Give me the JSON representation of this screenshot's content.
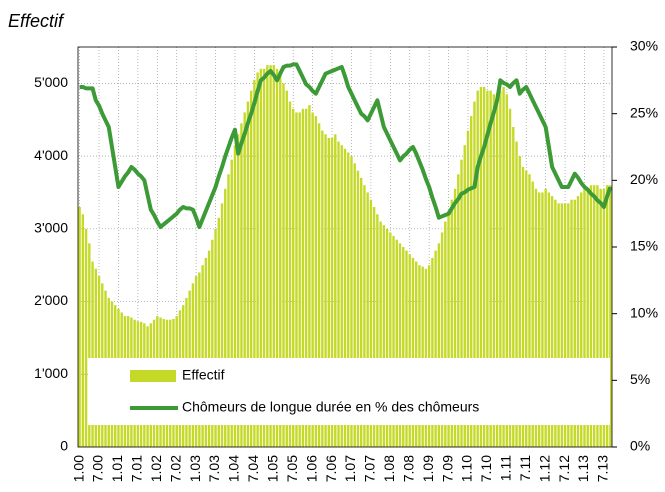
{
  "chart_data": {
    "type": "bar_line",
    "title": "Effectif",
    "categories": [
      "1.00",
      null,
      null,
      null,
      null,
      null,
      "7.00",
      null,
      null,
      null,
      null,
      null,
      "1.01",
      null,
      null,
      null,
      null,
      null,
      "7.01",
      null,
      null,
      null,
      null,
      null,
      "1.02",
      null,
      null,
      null,
      null,
      null,
      "7.02",
      null,
      null,
      null,
      null,
      null,
      "1.03",
      null,
      null,
      null,
      null,
      null,
      "7.03",
      null,
      null,
      null,
      null,
      null,
      "1.04",
      null,
      null,
      null,
      null,
      null,
      "7.04",
      null,
      null,
      null,
      null,
      null,
      "1.05",
      null,
      null,
      null,
      null,
      null,
      "7.05",
      null,
      null,
      null,
      null,
      null,
      "1.06",
      null,
      null,
      null,
      null,
      null,
      "7.06",
      null,
      null,
      null,
      null,
      null,
      "1.07",
      null,
      null,
      null,
      null,
      null,
      "7.07",
      null,
      null,
      null,
      null,
      null,
      "1.08",
      null,
      null,
      null,
      null,
      null,
      "7.08",
      null,
      null,
      null,
      null,
      null,
      "1.09",
      null,
      null,
      null,
      null,
      null,
      "7.09",
      null,
      null,
      null,
      null,
      null,
      "1.10",
      null,
      null,
      null,
      null,
      null,
      "7.10",
      null,
      null,
      null,
      null,
      null,
      "1.11",
      null,
      null,
      null,
      null,
      null,
      "7.11",
      null,
      null,
      null,
      null,
      null,
      "1.12",
      null,
      null,
      null,
      null,
      null,
      "7.12",
      null,
      null,
      null,
      null,
      null,
      "1.13",
      null,
      null,
      null,
      null,
      null,
      "7.13",
      null,
      null
    ],
    "series": [
      {
        "name": "Effectif",
        "color": "#c5d928",
        "kind": "bar",
        "values": [
          3300,
          3200,
          3000,
          2800,
          2550,
          2450,
          2350,
          2250,
          2150,
          2050,
          2000,
          1950,
          1900,
          1850,
          1800,
          1800,
          1780,
          1750,
          1730,
          1720,
          1700,
          1660,
          1700,
          1750,
          1800,
          1780,
          1760,
          1750,
          1750,
          1760,
          1800,
          1880,
          1950,
          2050,
          2150,
          2250,
          2350,
          2400,
          2500,
          2600,
          2700,
          2850,
          3000,
          3150,
          3350,
          3550,
          3750,
          3950,
          4150,
          4300,
          4450,
          4600,
          4750,
          4900,
          5050,
          5150,
          5200,
          5200,
          5250,
          5250,
          5250,
          5200,
          5100,
          5000,
          4900,
          4750,
          4650,
          4600,
          4600,
          4650,
          4650,
          4700,
          4600,
          4550,
          4450,
          4350,
          4300,
          4250,
          4250,
          4300,
          4200,
          4150,
          4100,
          4050,
          4000,
          3900,
          3800,
          3700,
          3600,
          3500,
          3400,
          3300,
          3200,
          3100,
          3050,
          3000,
          2950,
          2900,
          2850,
          2800,
          2750,
          2700,
          2650,
          2600,
          2550,
          2500,
          2480,
          2450,
          2500,
          2600,
          2700,
          2800,
          2950,
          3100,
          3250,
          3400,
          3550,
          3750,
          3950,
          4150,
          4350,
          4550,
          4750,
          4900,
          4950,
          4950,
          4900,
          4900,
          4850,
          4850,
          4900,
          4950,
          4850,
          4650,
          4400,
          4200,
          4000,
          3850,
          3800,
          3750,
          3650,
          3550,
          3500,
          3500,
          3550,
          3500,
          3450,
          3400,
          3350,
          3350,
          3350,
          3350,
          3400,
          3400,
          3450,
          3500,
          3550,
          3550,
          3600,
          3600,
          3600,
          3550,
          3550,
          3600,
          3600
        ]
      },
      {
        "name": "Chômeurs de longue durée en % des chômeurs",
        "color": "#3c9a37",
        "kind": "line",
        "axis": "y2",
        "values": [
          27.0,
          27.0,
          26.9,
          26.9,
          26.9,
          26.0,
          25.6,
          25.0,
          24.5,
          24.0,
          22.5,
          21.0,
          19.5,
          19.9,
          20.3,
          20.6,
          21.0,
          20.8,
          20.5,
          20.3,
          20.0,
          18.9,
          17.8,
          17.4,
          16.9,
          16.5,
          16.7,
          16.9,
          17.1,
          17.3,
          17.5,
          17.8,
          18.0,
          17.9,
          17.9,
          17.8,
          17.2,
          16.5,
          17.1,
          17.7,
          18.3,
          18.9,
          19.5,
          20.3,
          21.0,
          21.8,
          22.5,
          23.2,
          23.8,
          22.0,
          22.8,
          23.5,
          24.3,
          25.0,
          25.8,
          26.7,
          27.5,
          27.7,
          28.0,
          28.2,
          27.9,
          27.5,
          28.0,
          28.5,
          28.6,
          28.6,
          28.7,
          28.7,
          28.2,
          27.7,
          27.2,
          27.0,
          26.7,
          26.5,
          27.0,
          27.5,
          28.0,
          28.1,
          28.2,
          28.3,
          28.4,
          28.5,
          27.8,
          27.0,
          26.5,
          26.0,
          25.5,
          25.0,
          24.8,
          24.5,
          25.0,
          25.5,
          26.0,
          25.0,
          24.0,
          23.5,
          23.0,
          22.5,
          22.0,
          21.5,
          21.8,
          22.0,
          22.3,
          22.5,
          22.0,
          21.4,
          20.8,
          20.1,
          19.5,
          18.7,
          18.0,
          17.2,
          17.3,
          17.4,
          17.5,
          17.9,
          18.3,
          18.6,
          19.0,
          19.1,
          19.3,
          19.4,
          19.5,
          21.0,
          21.8,
          22.5,
          23.4,
          24.3,
          25.1,
          26.0,
          27.5,
          27.3,
          27.2,
          27.0,
          27.3,
          27.5,
          26.5,
          26.8,
          27.0,
          26.5,
          26.0,
          25.5,
          25.0,
          24.5,
          24.0,
          22.5,
          21.0,
          20.5,
          20.0,
          19.5,
          19.5,
          19.5,
          20.0,
          20.5,
          20.2,
          19.8,
          19.5,
          19.3,
          19.0,
          18.8,
          18.5,
          18.3,
          18.0,
          18.8,
          19.5
        ]
      }
    ],
    "ylim": [
      0,
      5500
    ],
    "yticks": [
      0,
      {
        "value": 1000,
        "label": "1'000"
      },
      {
        "value": 2000,
        "label": "2'000"
      },
      {
        "value": 3000,
        "label": "3'000"
      },
      {
        "value": 4000,
        "label": "4'000"
      },
      {
        "value": 5000,
        "label": "5'000"
      }
    ],
    "y2lim": [
      0,
      30
    ],
    "y2ticks": [
      {
        "value": 0,
        "label": "0%"
      },
      {
        "value": 5,
        "label": "5%"
      },
      {
        "value": 10,
        "label": "10%"
      },
      {
        "value": 15,
        "label": "15%"
      },
      {
        "value": 20,
        "label": "20%"
      },
      {
        "value": 25,
        "label": "25%"
      },
      {
        "value": 30,
        "label": "30%"
      }
    ],
    "grid": true,
    "legend": "bottom"
  }
}
